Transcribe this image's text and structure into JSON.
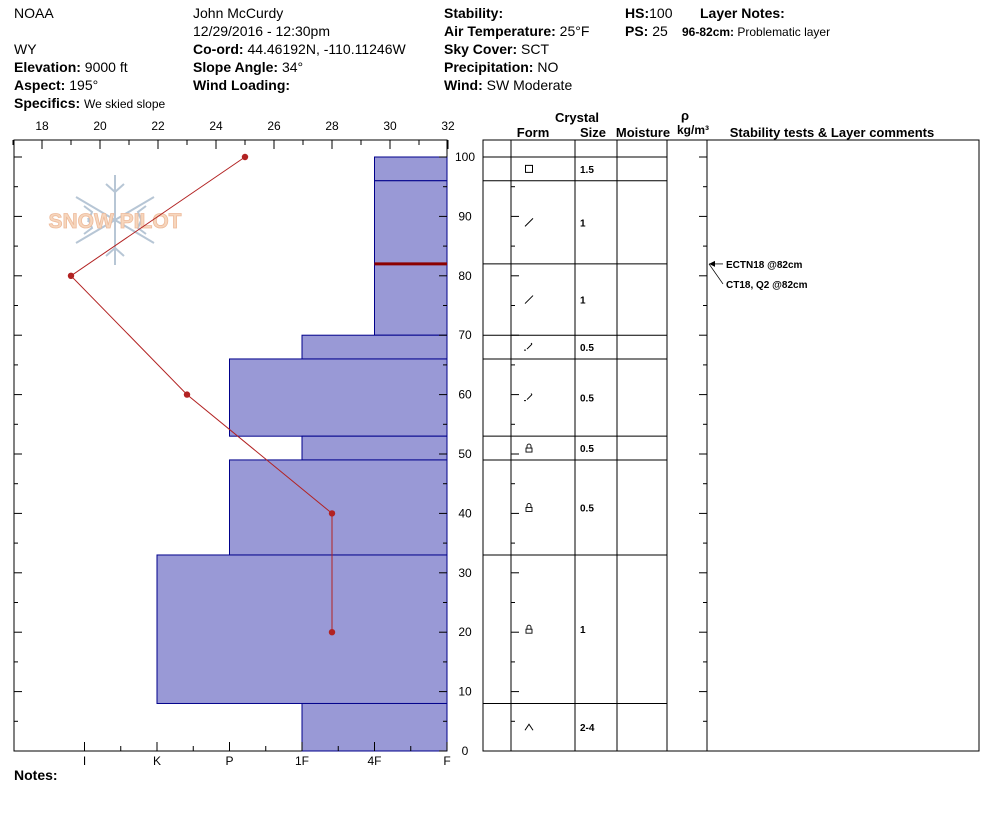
{
  "header": {
    "org": "NOAA",
    "state": "WY",
    "elevation_label": "Elevation:",
    "elevation": "9000 ft",
    "aspect_label": "Aspect:",
    "aspect": "195°",
    "specifics_label": "Specifics:",
    "specifics": "We skied slope",
    "observer": "John McCurdy",
    "datetime": "12/29/2016 - 12:30pm",
    "coord_label": "Co-ord:",
    "coord": "44.46192N, -110.11246W",
    "slope_label": "Slope Angle:",
    "slope": "34°",
    "wind_loading_label": "Wind Loading:",
    "stability_label": "Stability:",
    "air_temp_label": "Air Temperature:",
    "air_temp": "25°F",
    "sky_label": "Sky Cover:",
    "sky": "SCT",
    "precip_label": "Precipitation:",
    "precip": "NO",
    "wind_label": "Wind:",
    "wind": "SW Moderate",
    "hs_label": "HS:",
    "hs": "100",
    "ps_label": "PS:",
    "ps": "25",
    "layer_notes_label": "Layer Notes:",
    "layer_note_range": "96-82cm:",
    "layer_note_text": "Problematic layer"
  },
  "notes_label": "Notes:",
  "logo_text": "SNOW PILOT",
  "table_headers": {
    "crystal": "Crystal",
    "form": "Form",
    "size": "Size",
    "moisture": "Moisture",
    "rho": "ρ",
    "density_unit": "kg/m³",
    "stability": "Stability tests & Layer comments"
  },
  "colors": {
    "hardness_fill": "#9999d6",
    "hardness_stroke": "#00008b",
    "temp_line": "#b22222",
    "layer_marker": "#8b0000"
  },
  "chart_data": {
    "type": "snow-profile",
    "temp_axis": {
      "ticks": [
        "18",
        "20",
        "22",
        "24",
        "26",
        "28",
        "30",
        "32"
      ],
      "range": [
        17,
        32
      ]
    },
    "height_axis": {
      "ticks": [
        "0",
        "10",
        "20",
        "30",
        "40",
        "50",
        "60",
        "70",
        "80",
        "90",
        "100"
      ],
      "range": [
        0,
        100
      ]
    },
    "hardness_axis": {
      "ticks": [
        "I",
        "K",
        "P",
        "1F",
        "4F",
        "F"
      ]
    },
    "temperature_profile": [
      {
        "height": 100,
        "temp": 25
      },
      {
        "height": 80,
        "temp": 19
      },
      {
        "height": 60,
        "temp": 23
      },
      {
        "height": 40,
        "temp": 28
      },
      {
        "height": 20,
        "temp": 28
      }
    ],
    "layers": [
      {
        "top": 100,
        "bottom": 96,
        "hardness": 1.0,
        "form": "square",
        "size": "1.5"
      },
      {
        "top": 96,
        "bottom": 82,
        "hardness": 1.0,
        "form": "slash",
        "size": "1"
      },
      {
        "top": 82,
        "bottom": 70,
        "hardness": 1.0,
        "form": "slash",
        "size": "1"
      },
      {
        "top": 70,
        "bottom": 66,
        "hardness": 2.0,
        "form": "dashslash",
        "size": "0.5"
      },
      {
        "top": 66,
        "bottom": 53,
        "hardness": 3.0,
        "form": "dashslash",
        "size": "0.5"
      },
      {
        "top": 53,
        "bottom": 49,
        "hardness": 2.0,
        "form": "lock",
        "size": "0.5"
      },
      {
        "top": 49,
        "bottom": 33,
        "hardness": 3.0,
        "form": "lock",
        "size": "0.5"
      },
      {
        "top": 33,
        "bottom": 8,
        "hardness": 4.0,
        "form": "lock",
        "size": "1"
      },
      {
        "top": 8,
        "bottom": 0,
        "hardness": 2.0,
        "form": "caret",
        "size": "2-4"
      }
    ],
    "marked_layer_height": 82,
    "stability_tests": [
      {
        "height": 82,
        "text": "ECTN18 @82cm"
      },
      {
        "height": 82,
        "text": "CT18, Q2 @82cm"
      }
    ]
  }
}
